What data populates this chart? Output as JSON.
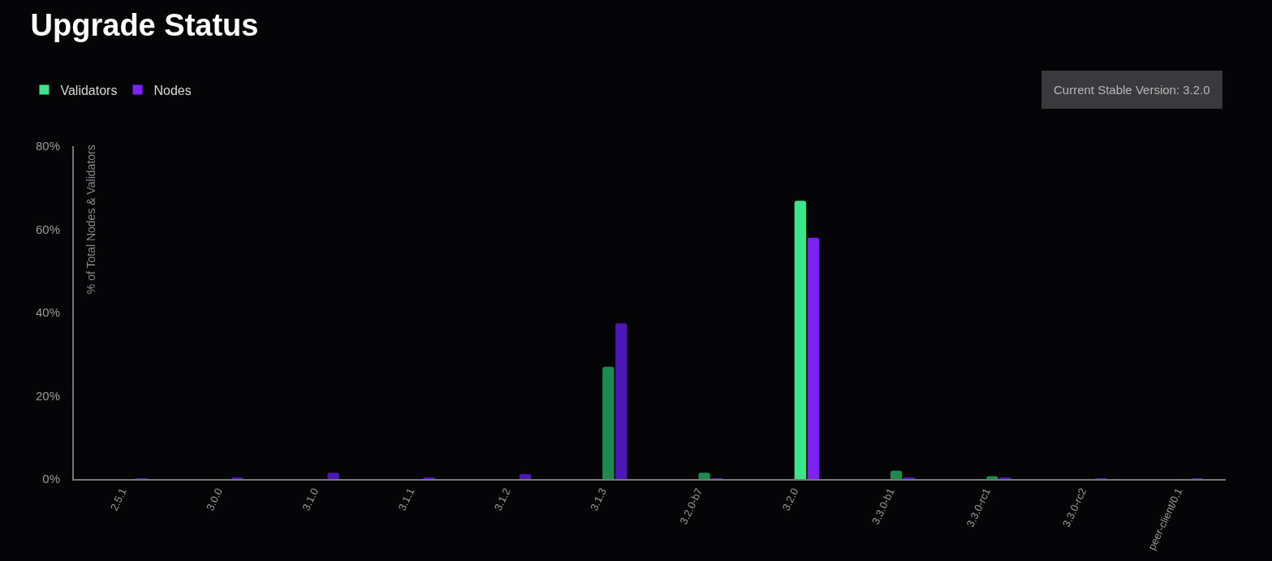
{
  "chart_data": {
    "type": "bar",
    "title": "Upgrade Status",
    "ylabel": "% of Total Nodes & Validators",
    "categories": [
      "2.5.1",
      "3.0.0",
      "3.1.0",
      "3.1.1",
      "3.1.2",
      "3.1.3",
      "3.2.0-b7",
      "3.2.0",
      "3.3.0-b1",
      "3.3.0-rc1",
      "3.3.0-rc2",
      "peer-client/0.1"
    ],
    "series": [
      {
        "name": "Validators",
        "color": "#3ce58a",
        "colors": [
          "#1f8a50",
          "#1f8a50",
          "#1f8a50",
          "#1f8a50",
          "#1f8a50",
          "#1f8a50",
          "#1f8a50",
          "#3ce58a",
          "#1f8a50",
          "#1f8a50",
          "#1f8a50",
          "#1f8a50"
        ],
        "values": [
          0,
          0,
          0,
          0,
          0,
          27,
          1.5,
          66.9,
          2,
          0.7,
          0,
          0
        ]
      },
      {
        "name": "Nodes",
        "color": "#7b22f5",
        "colors": [
          "#4c17b5",
          "#4c17b5",
          "#4c17b5",
          "#4c17b5",
          "#4c17b5",
          "#4c17b5",
          "#4c17b5",
          "#7b22f5",
          "#4c17b5",
          "#4c17b5",
          "#4c17b5",
          "#4c17b5"
        ],
        "values": [
          0.1,
          0.4,
          1.5,
          0.2,
          1.2,
          37.4,
          0.1,
          58,
          0.3,
          0.3,
          0.1,
          0.1
        ]
      }
    ],
    "ylim": [
      0,
      80
    ],
    "yticks": [
      {
        "value": 0,
        "label": "0%"
      },
      {
        "value": 20,
        "label": "20%"
      },
      {
        "value": 40,
        "label": "40%"
      },
      {
        "value": 60,
        "label": "60%"
      },
      {
        "value": 80,
        "label": "80%"
      }
    ],
    "grid": false,
    "legend": "top left",
    "annotations": [
      "Current Stable Version: 3.2.0"
    ]
  }
}
